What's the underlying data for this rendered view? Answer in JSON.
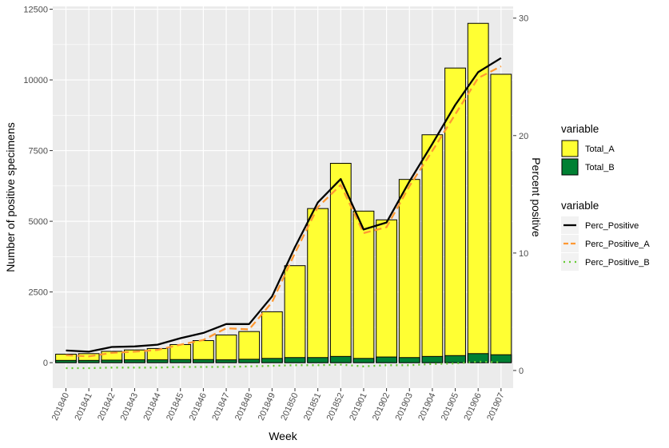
{
  "chart_data": {
    "type": "bar",
    "xlabel": "Week",
    "ylabel_left": "Number of positive specimens",
    "ylabel_right": "Percent positive",
    "ylim_left": [
      -900,
      12600
    ],
    "ylim_right": [
      -1.5,
      31
    ],
    "yticks_left": [
      0,
      2500,
      5000,
      7500,
      10000,
      12500
    ],
    "yticks_right": [
      0,
      10,
      20,
      30
    ],
    "grid": true,
    "categories": [
      "201840",
      "201841",
      "201842",
      "201843",
      "201844",
      "201845",
      "201846",
      "201847",
      "201848",
      "201849",
      "201850",
      "201851",
      "201852",
      "201901",
      "201902",
      "201903",
      "201904",
      "201905",
      "201906",
      "201907"
    ],
    "bar_series": [
      {
        "name": "Total_A",
        "color": "#FFFF33",
        "values": [
          300,
          320,
          400,
          450,
          500,
          640,
          780,
          980,
          1100,
          1800,
          3430,
          5450,
          7050,
          5360,
          5050,
          6480,
          8060,
          10420,
          12000,
          10200
        ]
      },
      {
        "name": "Total_B",
        "color": "#008033",
        "values": [
          80,
          80,
          90,
          100,
          100,
          110,
          110,
          100,
          120,
          150,
          180,
          180,
          220,
          150,
          200,
          180,
          220,
          250,
          320,
          280
        ]
      }
    ],
    "line_series": [
      {
        "name": "Perc_Positive",
        "color": "#000000",
        "style": "solid",
        "values": [
          1.7,
          1.6,
          2.0,
          2.05,
          2.2,
          2.75,
          3.2,
          3.95,
          3.95,
          6.3,
          10.5,
          14.3,
          16.3,
          12.0,
          12.6,
          16.1,
          19.3,
          22.6,
          25.4,
          26.6
        ]
      },
      {
        "name": "Perc_Positive_A",
        "color": "#FF9933",
        "style": "dashed",
        "values": [
          1.3,
          1.2,
          1.5,
          1.6,
          1.75,
          2.2,
          2.6,
          3.6,
          3.5,
          5.8,
          10.0,
          13.9,
          15.8,
          11.7,
          12.2,
          15.7,
          18.7,
          21.8,
          24.9,
          25.9
        ]
      },
      {
        "name": "Perc_Positive_B",
        "color": "#66CC33",
        "style": "dotted",
        "values": [
          0.2,
          0.2,
          0.25,
          0.25,
          0.25,
          0.3,
          0.3,
          0.3,
          0.35,
          0.4,
          0.45,
          0.45,
          0.5,
          0.35,
          0.45,
          0.45,
          0.55,
          0.6,
          0.75,
          0.7
        ]
      }
    ],
    "legend": {
      "position": "right",
      "groups": [
        {
          "title": "variable",
          "items": [
            {
              "label": "Total_A",
              "kind": "fill",
              "color": "#FFFF33"
            },
            {
              "label": "Total_B",
              "kind": "fill",
              "color": "#008033"
            }
          ]
        },
        {
          "title": "variable",
          "items": [
            {
              "label": "Perc_Positive",
              "kind": "solid",
              "color": "#000000"
            },
            {
              "label": "Perc_Positive_A",
              "kind": "dashed",
              "color": "#FF9933"
            },
            {
              "label": "Perc_Positive_B",
              "kind": "dotted",
              "color": "#66CC33"
            }
          ]
        }
      ]
    }
  },
  "colors": {
    "panel_background": "#EBEBEB",
    "grid_major": "#FFFFFF",
    "bar_outline": "#000000"
  }
}
